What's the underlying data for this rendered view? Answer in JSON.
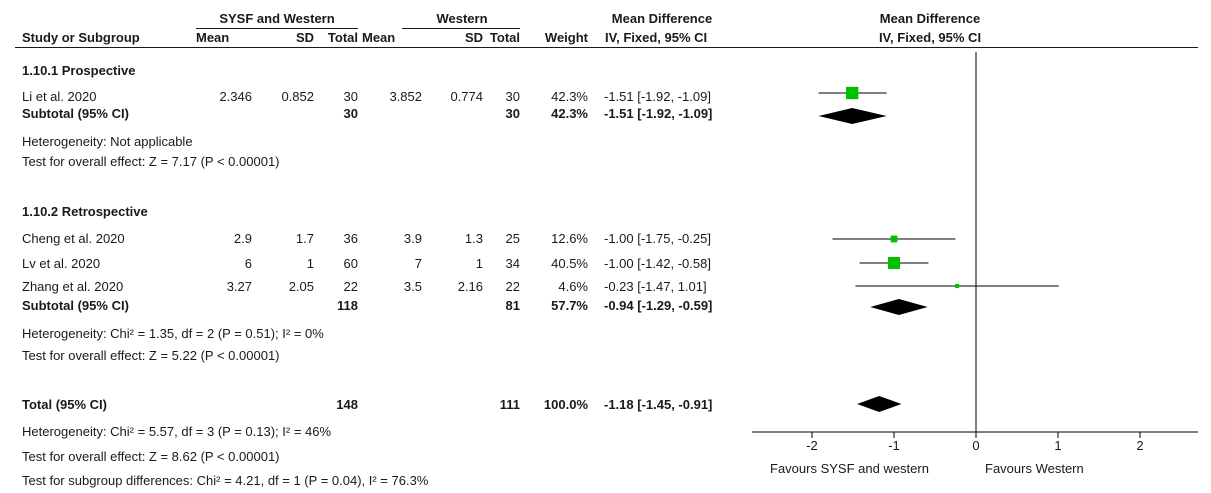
{
  "header": {
    "group1": "SYSF and Western",
    "group2": "Western",
    "md_title": "Mean Difference",
    "plot_title": "Mean Difference",
    "plot_method": "IV, Fixed, 95% CI",
    "cols": {
      "study": "Study or Subgroup",
      "mean1": "Mean",
      "sd1": "SD",
      "total1": "Total",
      "mean2": "Mean",
      "sd2": "SD",
      "total2": "Total",
      "weight": "Weight",
      "ci": "IV, Fixed, 95% CI"
    }
  },
  "subgroups": [
    {
      "title": "1.10.1 Prospective",
      "studies": [
        {
          "name": "Li et al. 2020",
          "mean1": "2.346",
          "sd1": "0.852",
          "total1": "30",
          "mean2": "3.852",
          "sd2": "0.774",
          "total2": "30",
          "weight": "42.3%",
          "ci": "-1.51 [-1.92, -1.09]"
        }
      ],
      "subtotal": {
        "label": "Subtotal (95% CI)",
        "total1": "30",
        "total2": "30",
        "weight": "42.3%",
        "ci": "-1.51 [-1.92, -1.09]"
      },
      "heterogeneity": "Heterogeneity: Not applicable",
      "overall": "Test for overall effect: Z = 7.17 (P < 0.00001)"
    },
    {
      "title": "1.10.2 Retrospective",
      "studies": [
        {
          "name": "Cheng et al. 2020",
          "mean1": "2.9",
          "sd1": "1.7",
          "total1": "36",
          "mean2": "3.9",
          "sd2": "1.3",
          "total2": "25",
          "weight": "12.6%",
          "ci": "-1.00 [-1.75, -0.25]"
        },
        {
          "name": "Lv et al. 2020",
          "mean1": "6",
          "sd1": "1",
          "total1": "60",
          "mean2": "7",
          "sd2": "1",
          "total2": "34",
          "weight": "40.5%",
          "ci": "-1.00 [-1.42, -0.58]"
        },
        {
          "name": "Zhang et al. 2020",
          "mean1": "3.27",
          "sd1": "2.05",
          "total1": "22",
          "mean2": "3.5",
          "sd2": "2.16",
          "total2": "22",
          "weight": "4.6%",
          "ci": "-0.23 [-1.47, 1.01]"
        }
      ],
      "subtotal": {
        "label": "Subtotal (95% CI)",
        "total1": "118",
        "total2": "81",
        "weight": "57.7%",
        "ci": "-0.94 [-1.29, -0.59]"
      },
      "heterogeneity": "Heterogeneity: Chi² = 1.35, df = 2 (P = 0.51); I² = 0%",
      "overall": "Test for overall effect: Z = 5.22 (P < 0.00001)"
    }
  ],
  "total": {
    "label": "Total (95% CI)",
    "total1": "148",
    "total2": "111",
    "weight": "100.0%",
    "ci": "-1.18 [-1.45, -0.91]",
    "heterogeneity": "Heterogeneity: Chi² = 5.57, df = 3 (P = 0.13); I² = 46%",
    "overall": "Test for overall effect: Z = 8.62 (P < 0.00001)",
    "subgroup_diff": "Test for subgroup differences: Chi² = 4.21, df = 1 (P = 0.04), I² = 76.3%"
  },
  "axis": {
    "favours_left": "Favours SYSF and western",
    "favours_right": "Favours Western"
  },
  "colors": {
    "square": "#00c000",
    "diamond": "#000000",
    "line": "#000000"
  },
  "chart_data": {
    "type": "forest",
    "xlim": [
      -2.6,
      2.6
    ],
    "ticks": [
      -2,
      -1,
      0,
      1,
      2
    ],
    "tick_labels": [
      "-2",
      "-1",
      "0",
      "1",
      "2"
    ],
    "null_value": 0,
    "studies": [
      {
        "name": "Li et al. 2020",
        "md": -1.51,
        "lo": -1.92,
        "hi": -1.09,
        "weight": 42.3
      },
      {
        "name": "Cheng et al. 2020",
        "md": -1.0,
        "lo": -1.75,
        "hi": -0.25,
        "weight": 12.6
      },
      {
        "name": "Lv et al. 2020",
        "md": -1.0,
        "lo": -1.42,
        "hi": -0.58,
        "weight": 40.5
      },
      {
        "name": "Zhang et al. 2020",
        "md": -0.23,
        "lo": -1.47,
        "hi": 1.01,
        "weight": 4.6
      }
    ],
    "diamonds": [
      {
        "name": "Subtotal 1.10.1",
        "md": -1.51,
        "lo": -1.92,
        "hi": -1.09
      },
      {
        "name": "Subtotal 1.10.2",
        "md": -0.94,
        "lo": -1.29,
        "hi": -0.59
      },
      {
        "name": "Total",
        "md": -1.18,
        "lo": -1.45,
        "hi": -0.91
      }
    ]
  }
}
